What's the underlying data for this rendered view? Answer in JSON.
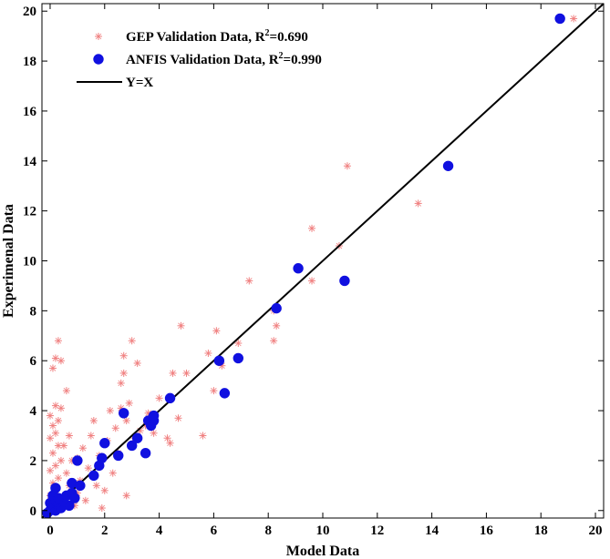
{
  "chart_data": {
    "type": "scatter",
    "xlabel": "Model Data",
    "ylabel": "Experimenal Data",
    "xlim": [
      -0.3,
      20.3
    ],
    "ylim": [
      -0.3,
      20.3
    ],
    "xticks": [
      0,
      2,
      4,
      6,
      8,
      10,
      12,
      14,
      16,
      18,
      20
    ],
    "yticks": [
      0,
      2,
      4,
      6,
      8,
      10,
      12,
      14,
      16,
      18,
      20
    ],
    "legend_position": "top-left",
    "series": [
      {
        "name": "GEP Validation Data",
        "r2_prefix": "R",
        "r2_sup": "2",
        "r2_value": "=0.690",
        "marker": "plus",
        "color": "#f08080",
        "points": [
          [
            0.1,
            0.0
          ],
          [
            0.2,
            0.1
          ],
          [
            0.3,
            0.0
          ],
          [
            0.1,
            0.3
          ],
          [
            0.4,
            0.2
          ],
          [
            0.0,
            0.6
          ],
          [
            0.2,
            0.8
          ],
          [
            0.5,
            0.4
          ],
          [
            0.1,
            1.1
          ],
          [
            0.3,
            1.3
          ],
          [
            0.0,
            1.6
          ],
          [
            0.2,
            1.8
          ],
          [
            0.4,
            2.0
          ],
          [
            0.1,
            2.3
          ],
          [
            0.3,
            2.6
          ],
          [
            0.0,
            2.9
          ],
          [
            0.2,
            3.1
          ],
          [
            0.1,
            3.4
          ],
          [
            0.3,
            3.6
          ],
          [
            0.0,
            3.8
          ],
          [
            0.2,
            4.2
          ],
          [
            0.4,
            4.1
          ],
          [
            0.1,
            5.7
          ],
          [
            0.4,
            6.0
          ],
          [
            0.2,
            6.1
          ],
          [
            0.3,
            6.8
          ],
          [
            0.6,
            0.6
          ],
          [
            0.7,
            1.0
          ],
          [
            0.6,
            1.5
          ],
          [
            0.8,
            2.0
          ],
          [
            0.5,
            2.6
          ],
          [
            0.7,
            3.0
          ],
          [
            0.6,
            4.8
          ],
          [
            0.9,
            0.2
          ],
          [
            1.0,
            0.7
          ],
          [
            1.1,
            1.2
          ],
          [
            1.0,
            2.1
          ],
          [
            1.2,
            2.5
          ],
          [
            1.3,
            0.4
          ],
          [
            1.4,
            1.7
          ],
          [
            1.5,
            3.0
          ],
          [
            1.6,
            3.6
          ],
          [
            1.7,
            1.0
          ],
          [
            1.8,
            2.2
          ],
          [
            1.9,
            0.1
          ],
          [
            2.0,
            0.8
          ],
          [
            2.1,
            2.8
          ],
          [
            2.2,
            4.0
          ],
          [
            2.3,
            1.5
          ],
          [
            2.4,
            3.3
          ],
          [
            2.5,
            2.3
          ],
          [
            2.6,
            4.1
          ],
          [
            2.6,
            5.1
          ],
          [
            2.7,
            5.5
          ],
          [
            2.7,
            6.2
          ],
          [
            2.8,
            3.6
          ],
          [
            2.8,
            0.6
          ],
          [
            2.9,
            4.3
          ],
          [
            3.0,
            6.8
          ],
          [
            3.1,
            2.9
          ],
          [
            3.2,
            5.9
          ],
          [
            3.3,
            3.2
          ],
          [
            3.5,
            3.4
          ],
          [
            3.6,
            3.9
          ],
          [
            3.8,
            3.1
          ],
          [
            4.0,
            4.5
          ],
          [
            4.3,
            2.9
          ],
          [
            4.4,
            2.7
          ],
          [
            4.5,
            5.5
          ],
          [
            4.7,
            3.7
          ],
          [
            4.8,
            7.4
          ],
          [
            5.0,
            5.5
          ],
          [
            5.6,
            3.0
          ],
          [
            5.8,
            6.3
          ],
          [
            6.1,
            7.2
          ],
          [
            6.0,
            4.8
          ],
          [
            6.3,
            5.8
          ],
          [
            6.9,
            6.7
          ],
          [
            7.3,
            9.2
          ],
          [
            8.2,
            6.8
          ],
          [
            8.3,
            7.4
          ],
          [
            8.2,
            8.0
          ],
          [
            9.6,
            11.3
          ],
          [
            9.6,
            9.2
          ],
          [
            10.6,
            10.6
          ],
          [
            10.9,
            13.8
          ],
          [
            13.5,
            12.3
          ],
          [
            19.2,
            19.7
          ]
        ]
      },
      {
        "name": "ANFIS Validation Data",
        "r2_prefix": "R",
        "r2_sup": "2",
        "r2_value": "=0.990",
        "marker": "filled-circle",
        "color": "#1010e0",
        "points": [
          [
            -0.1,
            -0.1
          ],
          [
            0.0,
            0.0
          ],
          [
            0.1,
            0.1
          ],
          [
            0.2,
            0.0
          ],
          [
            0.3,
            0.2
          ],
          [
            0.0,
            0.3
          ],
          [
            0.2,
            0.4
          ],
          [
            0.4,
            0.1
          ],
          [
            0.5,
            0.3
          ],
          [
            0.1,
            0.6
          ],
          [
            0.3,
            0.5
          ],
          [
            0.6,
            0.6
          ],
          [
            0.7,
            0.2
          ],
          [
            0.2,
            0.9
          ],
          [
            0.8,
            0.7
          ],
          [
            0.9,
            0.5
          ],
          [
            0.8,
            1.1
          ],
          [
            1.0,
            2.0
          ],
          [
            1.1,
            1.0
          ],
          [
            1.6,
            1.4
          ],
          [
            1.8,
            1.8
          ],
          [
            1.9,
            2.1
          ],
          [
            2.0,
            2.7
          ],
          [
            2.5,
            2.2
          ],
          [
            2.7,
            3.9
          ],
          [
            3.0,
            2.6
          ],
          [
            3.2,
            2.9
          ],
          [
            3.5,
            2.3
          ],
          [
            3.6,
            3.6
          ],
          [
            3.7,
            3.4
          ],
          [
            3.8,
            3.6
          ],
          [
            3.8,
            3.8
          ],
          [
            4.4,
            4.5
          ],
          [
            6.2,
            6.0
          ],
          [
            6.4,
            4.7
          ],
          [
            6.9,
            6.1
          ],
          [
            8.3,
            8.1
          ],
          [
            9.1,
            9.7
          ],
          [
            10.8,
            9.2
          ],
          [
            14.6,
            13.8
          ],
          [
            18.7,
            19.7
          ]
        ]
      },
      {
        "name": "Y=X",
        "marker": "line",
        "color": "#000000",
        "points": [
          [
            -0.3,
            -0.3
          ],
          [
            20.3,
            20.3
          ]
        ]
      }
    ]
  }
}
